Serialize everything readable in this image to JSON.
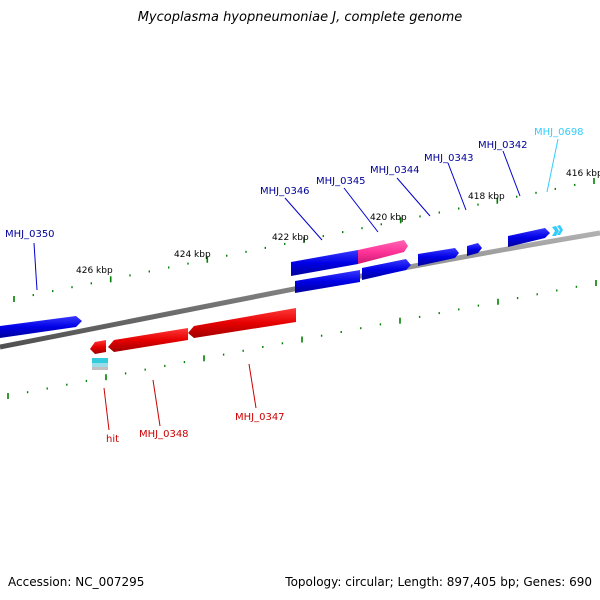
{
  "title": "Mycoplasma hyopneumoniae J, complete genome",
  "footer": {
    "accession": "Accession: NC_007295",
    "summary": "Topology: circular; Length: 897,405 bp; Genes: 690"
  },
  "colors": {
    "forward_gene": "#0000e6",
    "reverse_gene": "#e60000",
    "highlight_gene": "#ff3399",
    "hit": "#33ccdd",
    "pseudo_gene": "#33ccff",
    "backbone": "#808080",
    "tick": "#008000",
    "forward_label": "#000099",
    "reverse_label": "#cc0000",
    "highlight_label": "#33ccff"
  },
  "scale_labels": [
    "426 kbp",
    "424 kbp",
    "422 kbp",
    "420 kbp",
    "418 kbp",
    "416 kbp"
  ],
  "gene_labels": {
    "mhj_0350": "MHJ_0350",
    "mhj_0346": "MHJ_0346",
    "mhj_0345": "MHJ_0345",
    "mhj_0344": "MHJ_0344",
    "mhj_0343": "MHJ_0343",
    "mhj_0342": "MHJ_0342",
    "mhj_0698": "MHJ_0698",
    "mhj_0348": "MHJ_0348",
    "mhj_0347": "MHJ_0347",
    "hit": "hit"
  }
}
